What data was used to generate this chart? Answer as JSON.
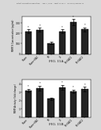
{
  "fig15a": {
    "label": "FIG. 15A",
    "ylabel": "MMP-9 Concentration (pg/ml)",
    "categories": [
      "Sham",
      "Sham+SAC",
      "MI",
      "D",
      "MI+SAC1",
      "MI+SAC2"
    ],
    "values": [
      220,
      235,
      105,
      220,
      310,
      240
    ],
    "errors": [
      18,
      20,
      10,
      18,
      28,
      20
    ],
    "ylim": [
      0,
      360
    ],
    "yticks": [
      0,
      100,
      200,
      300
    ]
  },
  "fig15b": {
    "label": "FIG. 15B",
    "ylabel": "MMP Activity (fold change)",
    "categories": [
      "Sham",
      "Sham+SAC",
      "MI",
      "D",
      "MI+SAC1",
      "MI+SAC2"
    ],
    "values": [
      3.2,
      3.5,
      2.2,
      3.6,
      3.1,
      3.4
    ],
    "errors": [
      0.22,
      0.28,
      0.18,
      0.3,
      0.22,
      0.26
    ],
    "ylim": [
      0,
      4.5
    ],
    "yticks": [
      0,
      1,
      2,
      3,
      4
    ]
  },
  "bar_color": "#222222",
  "page_color": "#d8d8d8",
  "chart_bg": "#ffffff",
  "header_text": "Patent Application Publication     Aug. 5, 2008    Sheet 15 of 17    US 2008/0188447 A1"
}
